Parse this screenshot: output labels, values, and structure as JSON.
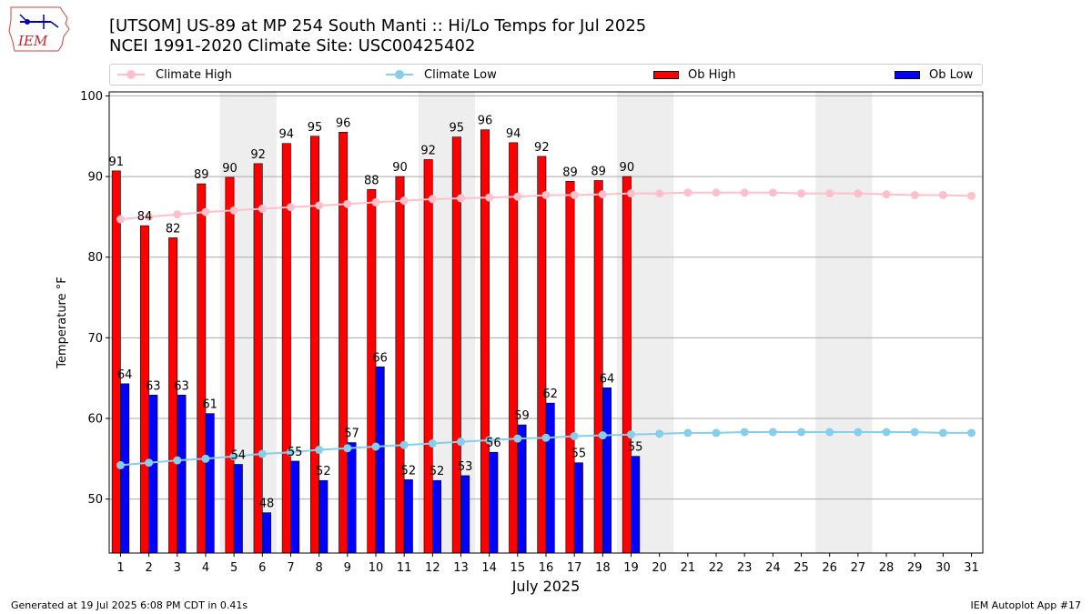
{
  "title_line1": "[UTSOM] US-89 at MP 254 South Manti  :: Hi/Lo Temps for Jul 2025",
  "title_line2": "NCEI 1991-2020 Climate Site: USC00425402",
  "footer_left": "Generated at 19 Jul 2025 6:08 PM CDT in 0.41s",
  "footer_right": "IEM Autoplot App #17",
  "logo_text": "IEM",
  "legend": {
    "climate_high": "Climate High",
    "climate_low": "Climate Low",
    "ob_high": "Ob High",
    "ob_low": "Ob Low"
  },
  "colors": {
    "ob_high": "#ff0000",
    "ob_low": "#0000ff",
    "climate_high": "#ffc0cb",
    "climate_low": "#87ceeb",
    "weekend_shade": "#eeeeee",
    "grid": "#aaaaaa"
  },
  "chart_data": {
    "type": "bar",
    "xlabel": "July 2025",
    "ylabel": "Temperature °F",
    "ylim": [
      43.3,
      100.5
    ],
    "yticks": [
      50,
      60,
      70,
      80,
      90,
      100
    ],
    "grid": true,
    "legend_position": "top",
    "days": [
      1,
      2,
      3,
      4,
      5,
      6,
      7,
      8,
      9,
      10,
      11,
      12,
      13,
      14,
      15,
      16,
      17,
      18,
      19,
      20,
      21,
      22,
      23,
      24,
      25,
      26,
      27,
      28,
      29,
      30,
      31
    ],
    "shaded_days": [
      5,
      6,
      12,
      13,
      19,
      20,
      26,
      27
    ],
    "series": [
      {
        "name": "Ob High",
        "kind": "bar",
        "values": [
          90.7,
          83.9,
          82.4,
          89.1,
          89.9,
          91.6,
          94.1,
          95.0,
          95.5,
          88.4,
          90.0,
          92.1,
          94.9,
          95.8,
          94.2,
          92.5,
          89.4,
          89.5,
          90.0
        ],
        "labels": [
          "91",
          "84",
          "82",
          "89",
          "90",
          "92",
          "94",
          "95",
          "96",
          "88",
          "90",
          "92",
          "95",
          "96",
          "94",
          "92",
          "89",
          "89",
          "90"
        ]
      },
      {
        "name": "Ob Low",
        "kind": "bar",
        "values": [
          64.3,
          62.9,
          62.9,
          60.6,
          54.3,
          48.3,
          54.7,
          52.3,
          57.0,
          66.4,
          52.4,
          52.3,
          52.9,
          55.8,
          59.2,
          61.9,
          54.5,
          63.8,
          55.3
        ],
        "labels": [
          "64",
          "63",
          "63",
          "61",
          "54",
          "48",
          "55",
          "52",
          "57",
          "66",
          "52",
          "52",
          "53",
          "56",
          "59",
          "62",
          "55",
          "64",
          "55"
        ]
      },
      {
        "name": "Climate High",
        "kind": "line",
        "values": [
          84.7,
          85.0,
          85.3,
          85.6,
          85.8,
          86.0,
          86.2,
          86.4,
          86.6,
          86.8,
          87.0,
          87.2,
          87.3,
          87.4,
          87.5,
          87.7,
          87.7,
          87.8,
          87.9,
          87.9,
          88.0,
          88.0,
          88.0,
          88.0,
          87.9,
          87.9,
          87.9,
          87.8,
          87.7,
          87.7,
          87.6
        ]
      },
      {
        "name": "Climate Low",
        "kind": "line",
        "values": [
          54.2,
          54.5,
          54.8,
          55.0,
          55.3,
          55.6,
          55.8,
          56.1,
          56.3,
          56.5,
          56.7,
          56.9,
          57.1,
          57.3,
          57.5,
          57.6,
          57.8,
          57.9,
          58.0,
          58.1,
          58.2,
          58.2,
          58.3,
          58.3,
          58.3,
          58.3,
          58.3,
          58.3,
          58.3,
          58.2,
          58.2
        ]
      }
    ]
  }
}
